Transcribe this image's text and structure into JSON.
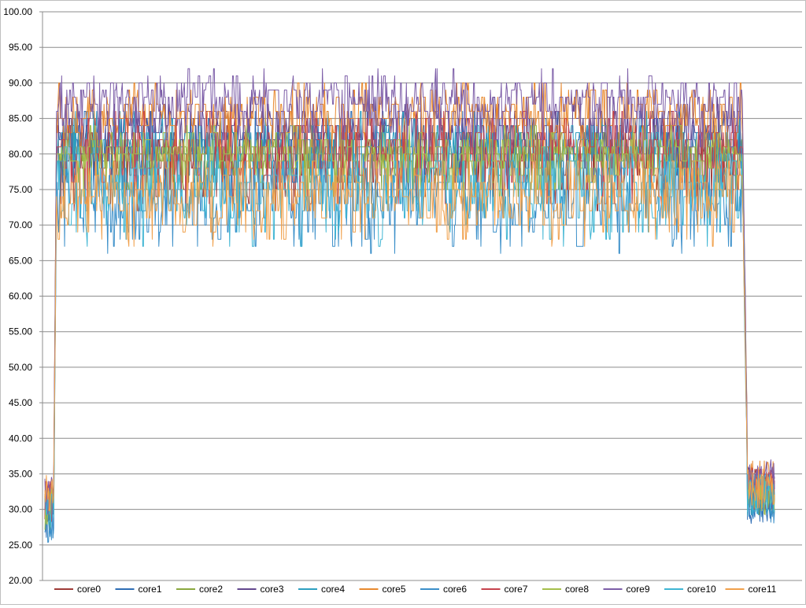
{
  "chart_data": {
    "type": "line",
    "title": "",
    "xlabel": "",
    "ylabel": "",
    "ylim": [
      20,
      100
    ],
    "y_ticks": [
      "20.00",
      "25.00",
      "30.00",
      "35.00",
      "40.00",
      "45.00",
      "50.00",
      "55.00",
      "60.00",
      "65.00",
      "70.00",
      "75.00",
      "80.00",
      "85.00",
      "90.00",
      "95.00",
      "100.00"
    ],
    "grid": "horizontal",
    "legend_position": "bottom",
    "x_count": 1000,
    "series": [
      {
        "name": "core0",
        "color": "#9e3b37",
        "levels": {
          "idle": 31,
          "load": 79,
          "load_low": 76,
          "load_high": 82,
          "end": 33
        }
      },
      {
        "name": "core1",
        "color": "#2e6db4",
        "levels": {
          "idle": 29,
          "load": 81,
          "load_low": 79,
          "load_high": 84,
          "end": 31
        }
      },
      {
        "name": "core2",
        "color": "#8aa83f",
        "levels": {
          "idle": 30,
          "load": 80,
          "load_low": 78,
          "load_high": 82,
          "end": 32
        }
      },
      {
        "name": "core3",
        "color": "#62478e",
        "levels": {
          "idle": 31,
          "load": 84,
          "load_low": 82,
          "load_high": 86,
          "end": 33
        }
      },
      {
        "name": "core4",
        "color": "#2d9fc0",
        "levels": {
          "idle": 30,
          "load": 81,
          "load_low": 79,
          "load_high": 84,
          "end": 32
        }
      },
      {
        "name": "core5",
        "color": "#e8892f",
        "levels": {
          "idle": 32,
          "load": 85,
          "load_low": 83,
          "load_high": 88,
          "end": 34
        }
      },
      {
        "name": "core6",
        "color": "#3b8fc9",
        "levels": {
          "idle": 28,
          "load": 75,
          "load_low": 70,
          "load_high": 78,
          "end": 31
        }
      },
      {
        "name": "core7",
        "color": "#c6434d",
        "levels": {
          "idle": 31,
          "load": 81,
          "load_low": 77,
          "load_high": 84,
          "end": 33
        }
      },
      {
        "name": "core8",
        "color": "#a5bf4b",
        "levels": {
          "idle": 30,
          "load": 80,
          "load_low": 78,
          "load_high": 82,
          "end": 32
        }
      },
      {
        "name": "core9",
        "color": "#7d5ea8",
        "levels": {
          "idle": 32,
          "load": 87,
          "load_low": 85,
          "load_high": 90,
          "end": 34
        }
      },
      {
        "name": "core10",
        "color": "#3fb5d3",
        "levels": {
          "idle": 30,
          "load": 76,
          "load_low": 71,
          "load_high": 79,
          "end": 32
        }
      },
      {
        "name": "core11",
        "color": "#f0a04b",
        "levels": {
          "idle": 32,
          "load": 75,
          "load_low": 71,
          "load_high": 78,
          "end": 33
        }
      }
    ]
  }
}
